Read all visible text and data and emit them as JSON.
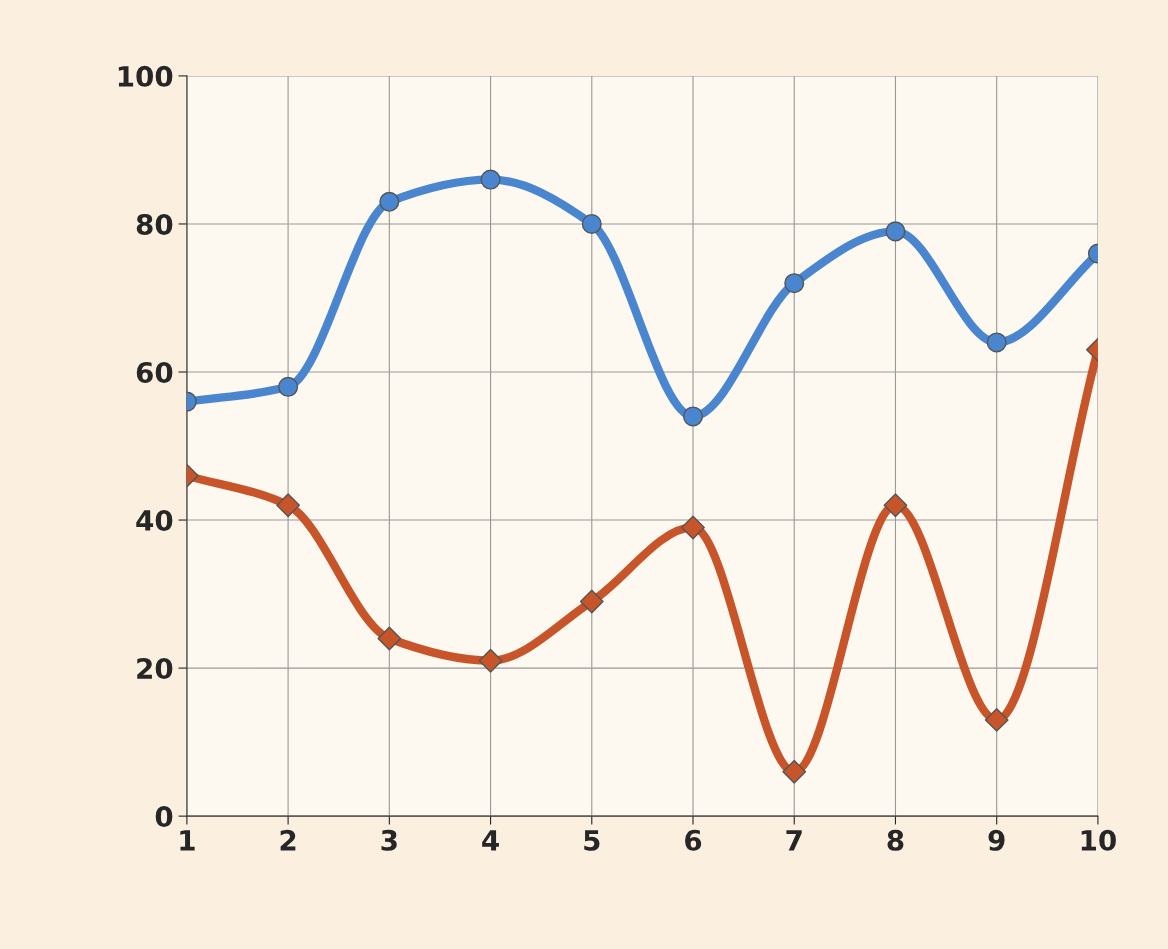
{
  "chart_data": {
    "type": "line",
    "x": [
      1,
      2,
      3,
      4,
      5,
      6,
      7,
      8,
      9,
      10
    ],
    "series": [
      {
        "color": "#4a86d0",
        "marker": "circle",
        "values": [
          56,
          58,
          83,
          86,
          80,
          54,
          72,
          79,
          64,
          76
        ]
      },
      {
        "color": "#c8552a",
        "marker": "diamond",
        "values": [
          46,
          42,
          24,
          21,
          29,
          39,
          6,
          42,
          13,
          63
        ]
      }
    ],
    "xlim": [
      1,
      10
    ],
    "xticks": [
      1,
      2,
      3,
      4,
      5,
      6,
      7,
      8,
      9,
      10
    ],
    "ylim": [
      0,
      100
    ],
    "yticks": [
      0,
      20,
      40,
      60,
      80,
      100
    ],
    "grid": true,
    "line_style": "solid"
  }
}
